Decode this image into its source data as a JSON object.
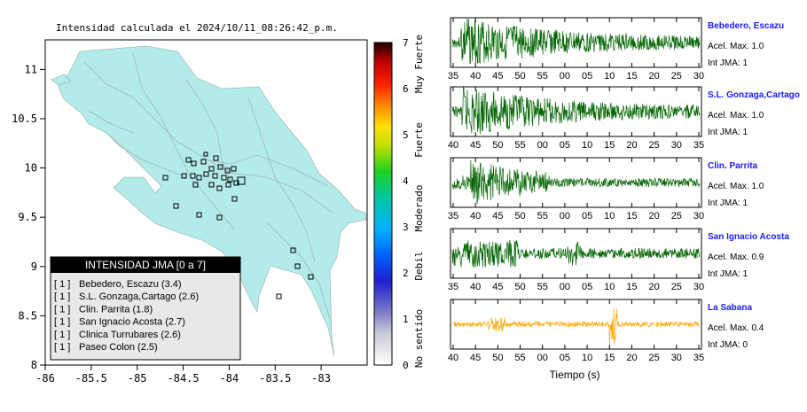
{
  "map": {
    "title": "Intensidad calculada el 2024/10/11_08:26:42_p.m.",
    "x_ticks": [
      "-86",
      "-85.5",
      "-85",
      "-84.5",
      "-84",
      "-83.5",
      "-83"
    ],
    "y_ticks": [
      "11",
      "10.5",
      "10",
      "9.5",
      "9",
      "8.5",
      "8"
    ],
    "colorbar": {
      "ticks": [
        "0",
        "1",
        "2",
        "3",
        "4",
        "5",
        "6",
        "7"
      ],
      "labels": [
        "No sentido",
        "Debil",
        "Moderado",
        "Fuerte",
        "Muy Fuerte"
      ]
    },
    "legend": {
      "title": "INTENSIDAD JMA [0 a 7]",
      "entries": [
        {
          "level": "[ 1 ]",
          "station": "Bebedero, Escazu (3.4)"
        },
        {
          "level": "[ 1 ]",
          "station": "S.L. Gonzaga,Cartago (2.6)"
        },
        {
          "level": "[ 1 ]",
          "station": "Clin. Parrita (1.8)"
        },
        {
          "level": "[ 1 ]",
          "station": "San Ignacio Acosta (2.7)"
        },
        {
          "level": "[ 1 ]",
          "station": "Clinica Turrubares (2.6)"
        },
        {
          "level": "[ 1 ]",
          "station": "Paseo Colon (2.5)"
        }
      ]
    }
  },
  "waveforms": {
    "xlabel": "Tiempo (s)",
    "panels": [
      {
        "station": "Bebedero, Escazu",
        "accel": "Acel. Max. 1.0",
        "jma": "Int JMA: 1",
        "color": "#006400",
        "ticks": [
          "35",
          "40",
          "45",
          "50",
          "55",
          "00",
          "05",
          "10",
          "15",
          "20",
          "25",
          "30"
        ]
      },
      {
        "station": "S.L. Gonzaga,Cartago",
        "accel": "Acel. Max. 1.0",
        "jma": "Int JMA: 1",
        "color": "#006400",
        "ticks": [
          "40",
          "45",
          "50",
          "55",
          "00",
          "05",
          "10",
          "15",
          "20",
          "25",
          "30",
          "35"
        ]
      },
      {
        "station": "Clin. Parrita",
        "accel": "Acel. Max. 1.0",
        "jma": "Int JMA: 1",
        "color": "#006400",
        "ticks": [
          "35",
          "40",
          "45",
          "50",
          "55",
          "00",
          "05",
          "10",
          "15",
          "20",
          "25",
          "30"
        ]
      },
      {
        "station": "San Ignacio Acosta",
        "accel": "Acel. Max. 0.9",
        "jma": "Int JMA: 1",
        "color": "#006400",
        "ticks": [
          "35",
          "40",
          "45",
          "50",
          "55",
          "00",
          "05",
          "10",
          "15",
          "20",
          "25",
          "30"
        ]
      },
      {
        "station": "La Sabana",
        "accel": "Acel. Max. 0.4",
        "jma": "Int JMA: 0",
        "color": "#ffa500",
        "ticks": [
          "40",
          "45",
          "50",
          "55",
          "00",
          "05",
          "10",
          "15",
          "20",
          "25",
          "30",
          "35"
        ]
      }
    ]
  },
  "chart_data": [
    {
      "type": "scatter",
      "title": "Intensidad calculada el 2024/10/11_08:26:42_p.m.",
      "xlim": [
        -86,
        -82.5
      ],
      "ylim": [
        8,
        11.3
      ],
      "colorbar_range": [
        0,
        7
      ],
      "legend_position": "bottom-left"
    },
    {
      "type": "line",
      "xlabel": "Tiempo (s)",
      "series": [
        {
          "name": "Bebedero, Escazu"
        },
        {
          "name": "S.L. Gonzaga,Cartago"
        },
        {
          "name": "Clin. Parrita"
        },
        {
          "name": "San Ignacio Acosta"
        },
        {
          "name": "La Sabana"
        }
      ]
    }
  ]
}
